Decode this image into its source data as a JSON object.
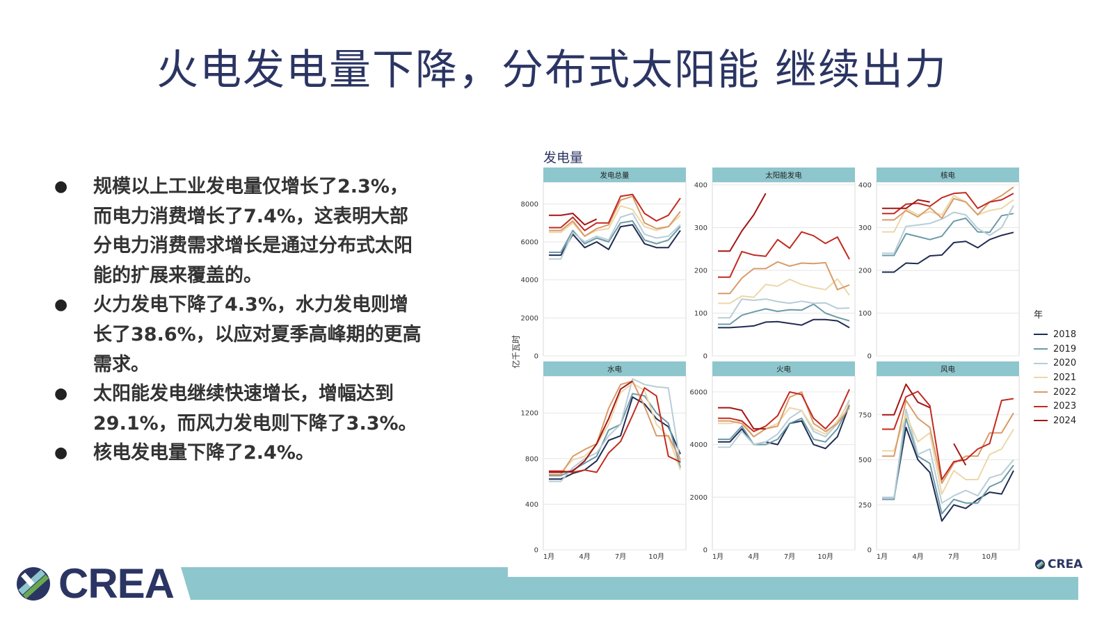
{
  "slide": {
    "title": "火电发电量下降，分布式太阳能 继续出力",
    "bullets": [
      "规模以上工业发电量仅增长了2.3%，而电力消费增长了7.4%，这表明大部分电力消费需求增长是通过分布式太阳能的扩展来覆盖的。",
      "火力发电下降了4.3%，水力发电则增长了38.6%，以应对夏季高峰期的更高需求。",
      "太阳能发电继续快速增长，增幅达到29.1%，而风力发电则下降了3.3%。",
      "核电发电量下降了2.4%。"
    ],
    "bullet_symbol": "●"
  },
  "brand": {
    "logo_text": "CREA",
    "small_logo_text": "CREA",
    "accent": "#8ec6cd",
    "navy": "#2b3563"
  },
  "chart_header": {
    "title": "发电量",
    "ylabel": "亿千瓦时"
  },
  "legend": {
    "title": "年"
  },
  "chart_data": {
    "type": "line",
    "ylabel": "亿千瓦时",
    "x": [
      "1月",
      "2月",
      "3月",
      "4月",
      "5月",
      "6月",
      "7月",
      "8月",
      "9月",
      "10月",
      "11月",
      "12月"
    ],
    "x_tick_labels": [
      "1月",
      "4月",
      "7月",
      "10月"
    ],
    "series_styles": [
      {
        "name": "2018",
        "color": "#1f2b52"
      },
      {
        "name": "2019",
        "color": "#6b9aa8"
      },
      {
        "name": "2020",
        "color": "#b8cdd6"
      },
      {
        "name": "2021",
        "color": "#ecd7a8"
      },
      {
        "name": "2022",
        "color": "#d99b68"
      },
      {
        "name": "2023",
        "color": "#c22a1f"
      },
      {
        "name": "2024",
        "color": "#a31513"
      }
    ],
    "panels": [
      {
        "title": "发电总量",
        "ylim": [
          0,
          9000
        ],
        "yticks": [
          0,
          2000,
          4000,
          6000,
          8000
        ],
        "series": [
          {
            "name": "2018",
            "values": [
              5300,
              5300,
              6400,
              5700,
              6000,
              5600,
              6800,
              6900,
              5900,
              5700,
              5700,
              6600
            ]
          },
          {
            "name": "2019",
            "values": [
              5450,
              5450,
              6600,
              5900,
              6200,
              6000,
              7000,
              7100,
              6100,
              5900,
              6100,
              6800
            ]
          },
          {
            "name": "2020",
            "values": [
              5100,
              5100,
              6500,
              6000,
              6300,
              6100,
              7300,
              7500,
              6400,
              6200,
              6300,
              6900
            ]
          },
          {
            "name": "2021",
            "values": [
              6500,
              6500,
              7000,
              6300,
              6600,
              6700,
              7900,
              7700,
              6800,
              6600,
              6800,
              7400
            ]
          },
          {
            "name": "2022",
            "values": [
              6600,
              6600,
              7100,
              6300,
              6700,
              6900,
              8200,
              8400,
              7000,
              6700,
              6800,
              7600
            ]
          },
          {
            "name": "2023",
            "values": [
              6750,
              6750,
              7300,
              6600,
              7000,
              7000,
              8400,
              8500,
              7500,
              7100,
              7400,
              8300
            ]
          },
          {
            "name": "2024",
            "values": [
              7400,
              7400,
              7500,
              6900,
              7200,
              null,
              null,
              null,
              null,
              null,
              null,
              null
            ]
          }
        ]
      },
      {
        "title": "太阳能发电",
        "ylim": [
          0,
          400
        ],
        "yticks": [
          0,
          100,
          200,
          300,
          400
        ],
        "series": [
          {
            "name": "2018",
            "values": [
              66,
              66,
              68,
              70,
              79,
              80,
              76,
              72,
              85,
              85,
              82,
              66
            ]
          },
          {
            "name": "2019",
            "values": [
              74,
              74,
              95,
              103,
              110,
              104,
              108,
              107,
              121,
              100,
              90,
              82
            ]
          },
          {
            "name": "2020",
            "values": [
              89,
              89,
              133,
              130,
              133,
              127,
              123,
              128,
              123,
              124,
              111,
              112
            ]
          },
          {
            "name": "2021",
            "values": [
              123,
              123,
              140,
              137,
              167,
              163,
              179,
              167,
              160,
              155,
              180,
              142
            ]
          },
          {
            "name": "2022",
            "values": [
              146,
              146,
              182,
              204,
              204,
              220,
              210,
              217,
              216,
              218,
              155,
              166
            ]
          },
          {
            "name": "2023",
            "values": [
              184,
              184,
              244,
              236,
              233,
              272,
              252,
              290,
              281,
              263,
              278,
              226
            ]
          },
          {
            "name": "2024",
            "values": [
              245,
              245,
              292,
              330,
              380,
              null,
              null,
              null,
              null,
              null,
              null,
              null
            ]
          }
        ]
      },
      {
        "title": "核电",
        "ylim": [
          0,
          400
        ],
        "yticks": [
          0,
          100,
          200,
          300,
          400
        ],
        "series": [
          {
            "name": "2018",
            "values": [
              196,
              196,
              217,
              216,
              234,
              236,
              265,
              268,
              253,
              272,
              282,
              289
            ]
          },
          {
            "name": "2019",
            "values": [
              235,
              235,
              286,
              279,
              272,
              280,
              315,
              322,
              290,
              289,
              328,
              333
            ]
          },
          {
            "name": "2020",
            "values": [
              240,
              240,
              303,
              306,
              310,
              320,
              336,
              330,
              298,
              282,
              300,
              352
            ]
          },
          {
            "name": "2021",
            "values": [
              290,
              290,
              345,
              330,
              337,
              330,
              375,
              360,
              330,
              340,
              345,
              365
            ]
          },
          {
            "name": "2022",
            "values": [
              318,
              318,
              340,
              325,
              347,
              322,
              368,
              360,
              330,
              360,
              375,
              395
            ]
          },
          {
            "name": "2023",
            "values": [
              333,
              333,
              355,
              357,
              350,
              370,
              380,
              382,
              345,
              360,
              365,
              380
            ]
          },
          {
            "name": "2024",
            "values": [
              345,
              345,
              345,
              365,
              360,
              null,
              null,
              null,
              null,
              null,
              null,
              null
            ]
          }
        ]
      },
      {
        "title": "水电",
        "ylim": [
          0,
          1500
        ],
        "yticks": [
          0,
          400,
          800,
          1200
        ],
        "series": [
          {
            "name": "2018",
            "values": [
              620,
              620,
              670,
              700,
              780,
              960,
              1000,
              1340,
              1280,
              1150,
              1080,
              840
            ]
          },
          {
            "name": "2019",
            "values": [
              650,
              650,
              700,
              760,
              820,
              1050,
              1100,
              1370,
              1350,
              1200,
              1110,
              720
            ]
          },
          {
            "name": "2020",
            "values": [
              600,
              600,
              720,
              800,
              850,
              1000,
              1100,
              1500,
              1450,
              1430,
              1420,
              760
            ]
          },
          {
            "name": "2021",
            "values": [
              680,
              680,
              790,
              820,
              920,
              1100,
              1380,
              1460,
              1400,
              1100,
              990,
              700
            ]
          },
          {
            "name": "2022",
            "values": [
              660,
              660,
              820,
              880,
              930,
              1240,
              1450,
              1480,
              1260,
              1000,
              1000,
              790
            ]
          },
          {
            "name": "2023",
            "values": [
              690,
              690,
              680,
              700,
              680,
              850,
              950,
              1180,
              1420,
              1350,
              820,
              770
            ]
          },
          {
            "name": "2024",
            "values": [
              680,
              680,
              690,
              780,
              930,
              1150,
              1410,
              1480,
              null,
              null,
              null,
              null
            ]
          }
        ]
      },
      {
        "title": "火电",
        "ylim": [
          0,
          6500
        ],
        "yticks": [
          0,
          2000,
          4000,
          6000
        ],
        "series": [
          {
            "name": "2018",
            "values": [
              4100,
              4100,
              4600,
              4000,
              4100,
              4000,
              4800,
              4900,
              4000,
              3850,
              4300,
              5500
            ]
          },
          {
            "name": "2019",
            "values": [
              4200,
              4200,
              4700,
              4000,
              4000,
              4200,
              4800,
              5000,
              4200,
              4100,
              4600,
              5500
            ]
          },
          {
            "name": "2020",
            "values": [
              3900,
              3900,
              4500,
              4000,
              4100,
              4400,
              5000,
              5300,
              4500,
              4300,
              4800,
              5700
            ]
          },
          {
            "name": "2021",
            "values": [
              4800,
              4800,
              4900,
              4300,
              4600,
              4800,
              5400,
              5300,
              4600,
              4400,
              4900,
              5600
            ]
          },
          {
            "name": "2022",
            "values": [
              4900,
              4900,
              4800,
              4300,
              4600,
              4700,
              5800,
              6000,
              4800,
              4500,
              4800,
              5400
            ]
          },
          {
            "name": "2023",
            "values": [
              5000,
              5000,
              4900,
              4500,
              4700,
              5100,
              6000,
              5900,
              5000,
              4600,
              5100,
              6100
            ]
          },
          {
            "name": "2024",
            "values": [
              5400,
              5400,
              5300,
              4600,
              4600,
              null,
              null,
              null,
              null,
              null,
              null,
              null
            ]
          }
        ]
      },
      {
        "title": "风电",
        "ylim": [
          0,
          950
        ],
        "yticks": [
          0,
          250,
          500,
          750
        ],
        "series": [
          {
            "name": "2018",
            "values": [
              290,
              290,
              680,
              500,
              430,
              160,
              250,
              230,
              280,
              320,
              310,
              440
            ]
          },
          {
            "name": "2019",
            "values": [
              280,
              280,
              730,
              520,
              480,
              200,
              280,
              260,
              260,
              350,
              380,
              470
            ]
          },
          {
            "name": "2020",
            "values": [
              290,
              290,
              780,
              530,
              560,
              260,
              300,
              330,
              300,
              400,
              420,
              500
            ]
          },
          {
            "name": "2021",
            "values": [
              550,
              550,
              750,
              600,
              650,
              310,
              440,
              390,
              390,
              530,
              560,
              670
            ]
          },
          {
            "name": "2022",
            "values": [
              520,
              520,
              830,
              730,
              680,
              370,
              480,
              520,
              520,
              650,
              650,
              760
            ]
          },
          {
            "name": "2023",
            "values": [
              670,
              670,
              850,
              880,
              800,
              390,
              490,
              500,
              560,
              590,
              830,
              840
            ]
          },
          {
            "name": "2024",
            "values": [
              750,
              750,
              920,
              820,
              790,
              null,
              590,
              470,
              null,
              null,
              null,
              null
            ]
          }
        ]
      }
    ]
  }
}
